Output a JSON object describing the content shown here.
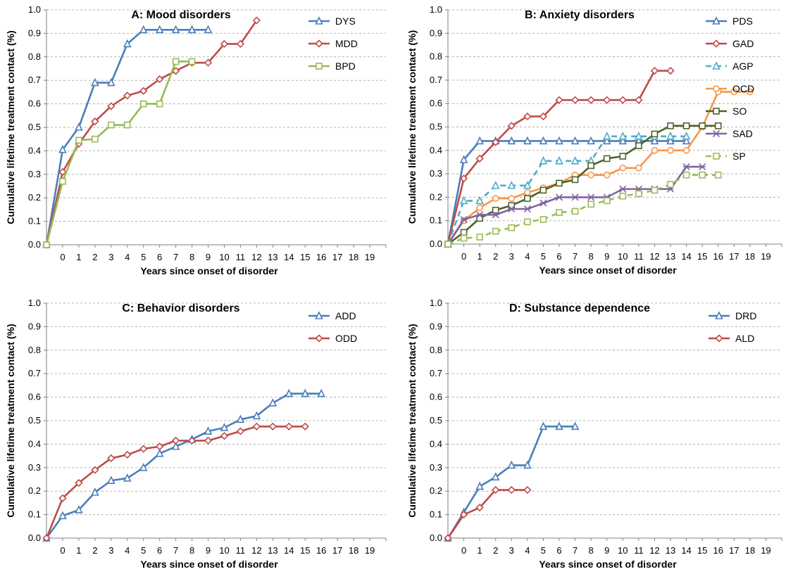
{
  "chart_data": [
    {
      "type": "line",
      "title": "A: Mood disorders",
      "xlabel": "Years since onset of disorder",
      "ylabel": "Cumulative lifetime treatment contact (%)",
      "x_ticks": [
        "0",
        "1",
        "2",
        "3",
        "4",
        "5",
        "6",
        "7",
        "8",
        "9",
        "10",
        "11",
        "12",
        "13",
        "14",
        "15",
        "16",
        "17",
        "18",
        "19"
      ],
      "y_ticks": [
        "0.0",
        "0.1",
        "0.2",
        "0.3",
        "0.4",
        "0.5",
        "0.6",
        "0.7",
        "0.8",
        "0.9",
        "1.0"
      ],
      "ylim": [
        0,
        1
      ],
      "grid": true,
      "legend_position": "top-right",
      "series": [
        {
          "name": "DYS",
          "color": "#4a7ebb",
          "marker": "triangle",
          "dash": false,
          "values": [
            0,
            0.405,
            0.5,
            0.69,
            0.69,
            0.855,
            0.915,
            0.915,
            0.915,
            0.915,
            0.915
          ]
        },
        {
          "name": "MDD",
          "color": "#be4b48",
          "marker": "diamond",
          "dash": false,
          "values": [
            0,
            0.31,
            0.43,
            0.525,
            0.59,
            0.635,
            0.655,
            0.705,
            0.74,
            0.775,
            0.775,
            0.855,
            0.855,
            0.955
          ]
        },
        {
          "name": "BPD",
          "color": "#98b954",
          "marker": "square",
          "dash": false,
          "values": [
            0,
            0.27,
            0.445,
            0.45,
            0.51,
            0.51,
            0.6,
            0.6,
            0.78,
            0.78
          ]
        }
      ]
    },
    {
      "type": "line",
      "title": "B: Anxiety disorders",
      "xlabel": "Years since onset of disorder",
      "ylabel": "Cumulative lifetime treatment contact (%)",
      "x_ticks": [
        "0",
        "1",
        "2",
        "3",
        "4",
        "5",
        "6",
        "7",
        "8",
        "9",
        "10",
        "11",
        "12",
        "13",
        "14",
        "15",
        "16",
        "17",
        "18",
        "19"
      ],
      "y_ticks": [
        "0.0",
        "0.1",
        "0.2",
        "0.3",
        "0.4",
        "0.5",
        "0.6",
        "0.7",
        "0.8",
        "0.9",
        "1.0"
      ],
      "ylim": [
        0,
        1
      ],
      "grid": true,
      "legend_position": "top-right",
      "series": [
        {
          "name": "PDS",
          "color": "#4a7ebb",
          "marker": "triangle",
          "dash": false,
          "values": [
            0,
            0.36,
            0.44,
            0.44,
            0.44,
            0.44,
            0.44,
            0.44,
            0.44,
            0.44,
            0.44,
            0.44,
            0.44,
            0.44,
            0.44,
            0.44
          ]
        },
        {
          "name": "GAD",
          "color": "#be4b48",
          "marker": "diamond",
          "dash": false,
          "values": [
            0,
            0.28,
            0.365,
            0.435,
            0.505,
            0.545,
            0.545,
            0.615,
            0.615,
            0.615,
            0.615,
            0.615,
            0.615,
            0.74,
            0.74
          ]
        },
        {
          "name": "AGP",
          "color": "#4bacc6",
          "marker": "triangle",
          "dash": true,
          "values": [
            0,
            0.185,
            0.185,
            0.25,
            0.25,
            0.25,
            0.355,
            0.355,
            0.355,
            0.355,
            0.46,
            0.46,
            0.46,
            0.46,
            0.46,
            0.46
          ]
        },
        {
          "name": "OCD",
          "color": "#f79646",
          "marker": "circle",
          "dash": false,
          "values": [
            0,
            0.1,
            0.155,
            0.195,
            0.195,
            0.22,
            0.24,
            0.26,
            0.295,
            0.295,
            0.295,
            0.325,
            0.325,
            0.4,
            0.4,
            0.4,
            0.5,
            0.65,
            0.65,
            0.65
          ]
        },
        {
          "name": "SO",
          "color": "#4f6228",
          "marker": "square",
          "dash": false,
          "values": [
            0,
            0.05,
            0.11,
            0.145,
            0.165,
            0.195,
            0.23,
            0.26,
            0.275,
            0.335,
            0.365,
            0.375,
            0.42,
            0.47,
            0.505,
            0.505,
            0.505,
            0.505
          ]
        },
        {
          "name": "SAD",
          "color": "#8064a2",
          "marker": "star",
          "dash": false,
          "values": [
            0,
            0.105,
            0.125,
            0.125,
            0.15,
            0.15,
            0.175,
            0.2,
            0.2,
            0.2,
            0.2,
            0.235,
            0.235,
            0.235,
            0.235,
            0.33,
            0.33
          ]
        },
        {
          "name": "SP",
          "color": "#9bbb59",
          "marker": "square",
          "dash": true,
          "values": [
            0,
            0.025,
            0.03,
            0.055,
            0.07,
            0.095,
            0.105,
            0.135,
            0.14,
            0.17,
            0.185,
            0.205,
            0.215,
            0.23,
            0.255,
            0.295,
            0.295,
            0.295
          ]
        }
      ]
    },
    {
      "type": "line",
      "title": "C: Behavior disorders",
      "xlabel": "Years since onset of disorder",
      "ylabel": "Cumulative lifetime treatment contact (%)",
      "x_ticks": [
        "0",
        "1",
        "2",
        "3",
        "4",
        "5",
        "6",
        "7",
        "8",
        "9",
        "10",
        "11",
        "12",
        "13",
        "14",
        "15",
        "16",
        "17",
        "18",
        "19"
      ],
      "y_ticks": [
        "0.0",
        "0.1",
        "0.2",
        "0.3",
        "0.4",
        "0.5",
        "0.6",
        "0.7",
        "0.8",
        "0.9",
        "1.0"
      ],
      "ylim": [
        0,
        1
      ],
      "grid": true,
      "legend_position": "top-right",
      "series": [
        {
          "name": "ADD",
          "color": "#4a7ebb",
          "marker": "triangle",
          "dash": false,
          "values": [
            0,
            0.095,
            0.12,
            0.195,
            0.245,
            0.255,
            0.3,
            0.36,
            0.39,
            0.42,
            0.455,
            0.47,
            0.505,
            0.52,
            0.575,
            0.615,
            0.615,
            0.615
          ]
        },
        {
          "name": "ODD",
          "color": "#be4b48",
          "marker": "diamond",
          "dash": false,
          "values": [
            0,
            0.17,
            0.235,
            0.29,
            0.34,
            0.355,
            0.38,
            0.39,
            0.415,
            0.415,
            0.415,
            0.435,
            0.455,
            0.475,
            0.475,
            0.475,
            0.475
          ]
        }
      ]
    },
    {
      "type": "line",
      "title": "D: Substance dependence",
      "xlabel": "Years since onset of disorder",
      "ylabel": "Cumulative lifetime treatment contact (%)",
      "x_ticks": [
        "0",
        "1",
        "2",
        "3",
        "4",
        "5",
        "6",
        "7",
        "8",
        "9",
        "10",
        "11",
        "12",
        "13",
        "14",
        "15",
        "16",
        "17",
        "18",
        "19"
      ],
      "y_ticks": [
        "0.0",
        "0.1",
        "0.2",
        "0.3",
        "0.4",
        "0.5",
        "0.6",
        "0.7",
        "0.8",
        "0.9",
        "1.0"
      ],
      "ylim": [
        0,
        1
      ],
      "grid": true,
      "legend_position": "top-right",
      "series": [
        {
          "name": "DRD",
          "color": "#4a7ebb",
          "marker": "triangle",
          "dash": false,
          "values": [
            0,
            0.11,
            0.22,
            0.26,
            0.31,
            0.31,
            0.475,
            0.475,
            0.475
          ]
        },
        {
          "name": "ALD",
          "color": "#be4b48",
          "marker": "diamond",
          "dash": false,
          "values": [
            0,
            0.1,
            0.13,
            0.205,
            0.205,
            0.205
          ]
        }
      ]
    }
  ]
}
